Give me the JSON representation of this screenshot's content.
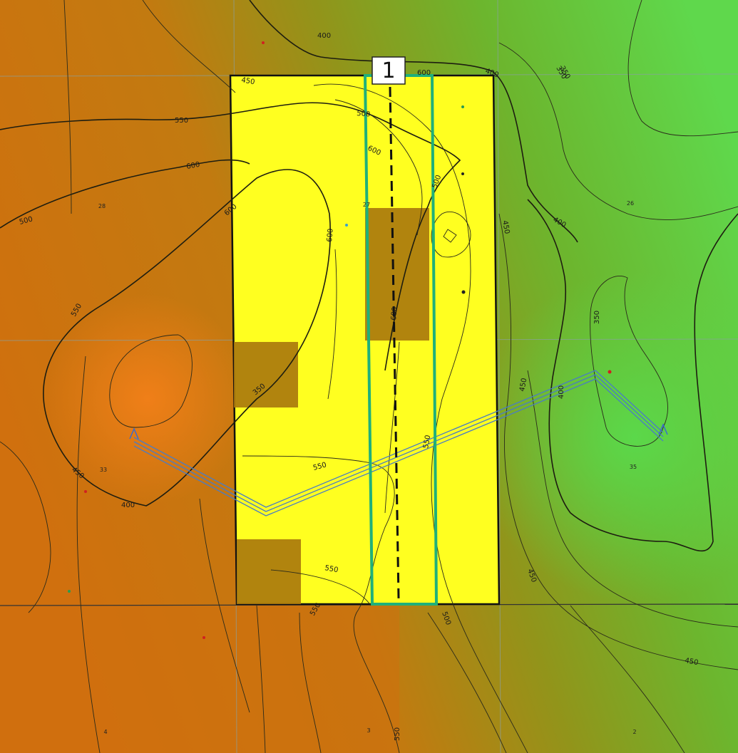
{
  "colors": {
    "high_elevation": "#d2700f",
    "mid_elevation": "#93951b",
    "low_elevation": "#5ec83f",
    "project_area": "#ffff20",
    "excluded_area": "#a9770c",
    "transect": "#1fb07a",
    "pipeline": "#4a7cc4",
    "boundary": "#111111"
  },
  "transect": {
    "label": "1"
  },
  "contour_labels": [
    "400",
    "400",
    "350",
    "450",
    "500",
    "550",
    "600",
    "600",
    "600",
    "600",
    "550",
    "350",
    "450",
    "400",
    "500",
    "600",
    "600",
    "550",
    "500",
    "450",
    "400",
    "350",
    "450",
    "350",
    "400",
    "550",
    "550",
    "500",
    "450",
    "550",
    "550",
    "450"
  ],
  "section_numbers": [
    "28",
    "27",
    "26",
    "33",
    "35",
    "4",
    "3",
    "2"
  ],
  "icon_names": [
    "section-line",
    "contour-line",
    "well-marker",
    "pipeline-endpoint-marker"
  ]
}
